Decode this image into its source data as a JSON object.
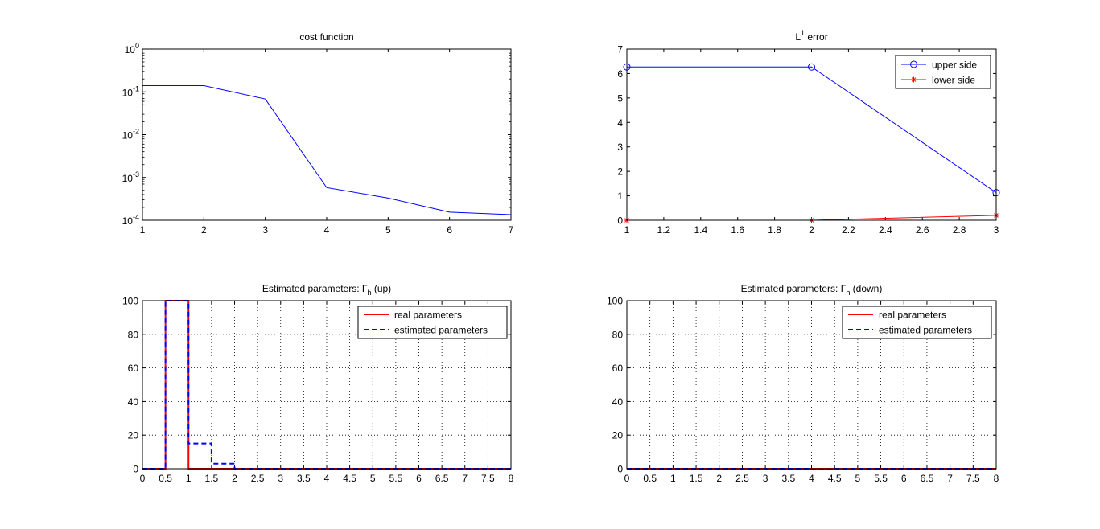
{
  "chart_data": [
    {
      "type": "line",
      "title": "cost function",
      "xlabel": "",
      "ylabel": "",
      "xlim": [
        1,
        7
      ],
      "ylim": [
        0.0001,
        1
      ],
      "yscale": "log",
      "x_ticks": [
        "1",
        "2",
        "3",
        "4",
        "5",
        "6",
        "7"
      ],
      "y_ticks": [
        {
          "base": "10",
          "exp": "-4"
        },
        {
          "base": "10",
          "exp": "-3"
        },
        {
          "base": "10",
          "exp": "-2"
        },
        {
          "base": "10",
          "exp": "-1"
        },
        {
          "base": "10",
          "exp": "0"
        }
      ],
      "grid": false,
      "series": [
        {
          "color": "#0000ff",
          "x": [
            1,
            2,
            3,
            4,
            5,
            6,
            7
          ],
          "y": [
            0.14,
            0.14,
            0.068,
            0.00058,
            0.00033,
            0.000155,
            0.000135
          ]
        }
      ]
    },
    {
      "type": "line",
      "title": "L",
      "title_sup": "1",
      "title_rest": " error",
      "xlabel": "",
      "ylabel": "",
      "xlim": [
        1,
        3
      ],
      "ylim": [
        0,
        7
      ],
      "x_ticks": [
        "1",
        "1.2",
        "1.4",
        "1.6",
        "1.8",
        "2",
        "2.2",
        "2.4",
        "2.6",
        "2.8",
        "3"
      ],
      "y_ticks": [
        "0",
        "1",
        "2",
        "3",
        "4",
        "5",
        "6",
        "7"
      ],
      "grid": false,
      "legend": "top-right",
      "series": [
        {
          "name": "upper side",
          "color": "#0000ff",
          "marker": "circle",
          "x": [
            1,
            2,
            3
          ],
          "y": [
            6.27,
            6.27,
            1.13
          ]
        },
        {
          "name": "lower side",
          "color": "#ff0000",
          "marker": "star",
          "x": [
            1,
            2,
            3
          ],
          "y": [
            0.0,
            0.0,
            0.2
          ]
        }
      ]
    },
    {
      "type": "line",
      "title": "Estimated parameters: Γ",
      "title_sub": "h",
      "title_rest": " (up)",
      "xlabel": "",
      "ylabel": "",
      "xlim": [
        0,
        8
      ],
      "ylim": [
        0,
        100
      ],
      "x_ticks": [
        "0",
        "0.5",
        "1",
        "1.5",
        "2",
        "2.5",
        "3",
        "3.5",
        "4",
        "4.5",
        "5",
        "5.5",
        "6",
        "6.5",
        "7",
        "7.5",
        "8"
      ],
      "y_ticks": [
        "0",
        "20",
        "40",
        "60",
        "80",
        "100"
      ],
      "grid": true,
      "legend": "top-right",
      "series": [
        {
          "name": "real parameters",
          "color": "#ff0000",
          "style": "solid",
          "x": [
            0,
            0.5,
            0.5,
            1,
            1,
            8
          ],
          "y": [
            0,
            0,
            100,
            100,
            0,
            0
          ]
        },
        {
          "name": "estimated parameters",
          "color": "#0000ff",
          "style": "dashed",
          "x": [
            0,
            0.5,
            0.5,
            1,
            1,
            1.5,
            1.5,
            2,
            2,
            8
          ],
          "y": [
            0,
            0,
            100,
            100,
            15,
            15,
            3,
            3,
            0,
            0
          ]
        }
      ]
    },
    {
      "type": "line",
      "title": "Estimated parameters: Γ",
      "title_sub": "h",
      "title_rest": " (down)",
      "xlabel": "",
      "ylabel": "",
      "xlim": [
        0,
        8
      ],
      "ylim": [
        0,
        100
      ],
      "x_ticks": [
        "0",
        "0.5",
        "1",
        "1.5",
        "2",
        "2.5",
        "3",
        "3.5",
        "4",
        "4.5",
        "5",
        "5.5",
        "6",
        "6.5",
        "7",
        "7.5",
        "8"
      ],
      "y_ticks": [
        "0",
        "20",
        "40",
        "60",
        "80",
        "100"
      ],
      "grid": true,
      "legend": "top-right",
      "series": [
        {
          "name": "real parameters",
          "color": "#ff0000",
          "style": "solid",
          "x": [
            0,
            8
          ],
          "y": [
            0,
            0
          ]
        },
        {
          "name": "estimated parameters",
          "color": "#0000ff",
          "style": "dashed",
          "x": [
            0,
            4,
            4,
            4.5,
            4.5,
            8
          ],
          "y": [
            0,
            0,
            -0.5,
            -0.5,
            0,
            0
          ]
        }
      ]
    }
  ]
}
